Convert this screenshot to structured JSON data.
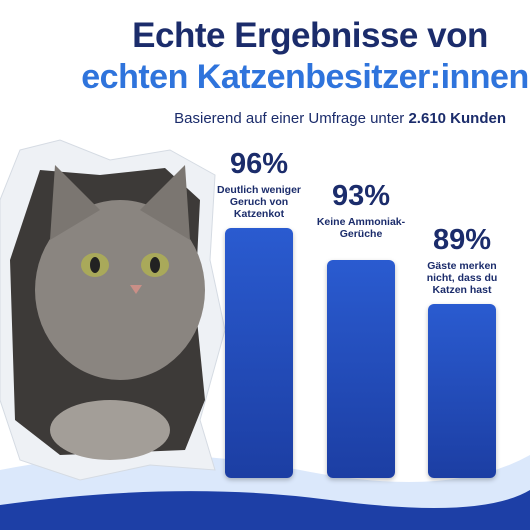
{
  "chart_data": {
    "type": "bar",
    "title": "Echte Ergebnisse von",
    "subtitle": "echten Katzenbesitzer:innen",
    "caption": {
      "text": "Basierend auf einer Umfrage unter",
      "highlight": "2.610 Kunden"
    },
    "categories": [
      "Deutlich weniger Geruch von Katzenkot",
      "Keine Ammoniak-Gerüche",
      "Gäste merken nicht, dass du Katzen hast"
    ],
    "values": [
      96,
      93,
      89
    ],
    "value_labels": [
      "96%",
      "93%",
      "89%"
    ],
    "ylim": [
      73,
      100
    ],
    "color": "#2a5bd0"
  }
}
